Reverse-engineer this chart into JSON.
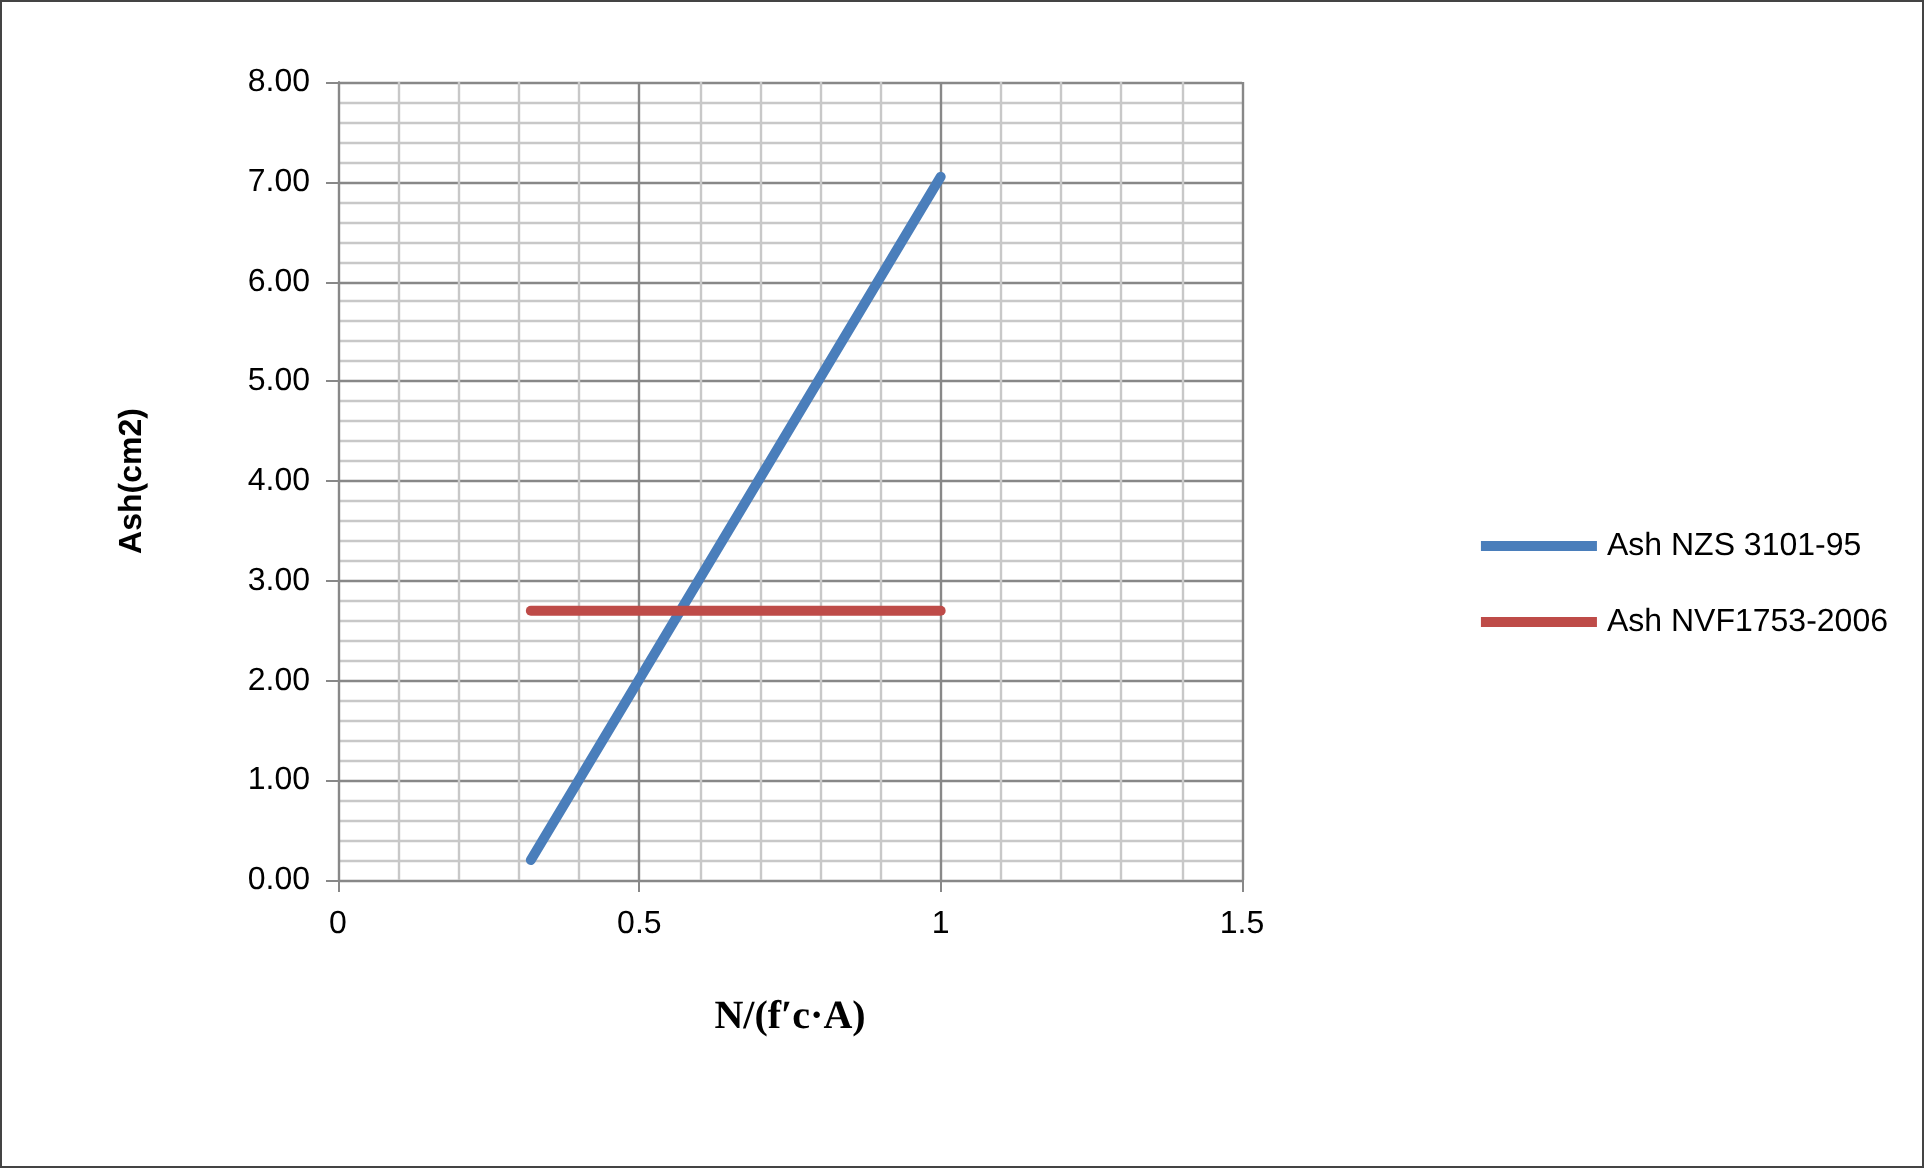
{
  "chart_data": {
    "type": "line",
    "xlabel": "N/(f′c·A)",
    "ylabel": "Ash(cm2)",
    "xlim": [
      0,
      1.5
    ],
    "xticks": [
      0,
      0.5,
      1,
      1.5
    ],
    "ylim": [
      0,
      8
    ],
    "yticks": [
      {
        "value": 0,
        "label": "0.00"
      },
      {
        "value": 1,
        "label": "1.00"
      },
      {
        "value": 2,
        "label": "2.00"
      },
      {
        "value": 3,
        "label": "3.00"
      },
      {
        "value": 4,
        "label": "4.00"
      },
      {
        "value": 5,
        "label": "5.00"
      },
      {
        "value": 6,
        "label": "6.00"
      },
      {
        "value": 7,
        "label": "7.00"
      },
      {
        "value": 8,
        "label": "8.00"
      }
    ],
    "x": [
      0.32,
      1
    ],
    "grid": true,
    "legend": "right",
    "marker": "none",
    "line_style": "solid",
    "series": [
      {
        "name": "Ash NZS 3101-95",
        "color": "#4a7ebb",
        "values": [
          0.2,
          7.05
        ]
      },
      {
        "name": "Ash NVF1753-2006",
        "color": "#be4b48",
        "values": [
          2.7,
          2.7
        ]
      }
    ]
  }
}
